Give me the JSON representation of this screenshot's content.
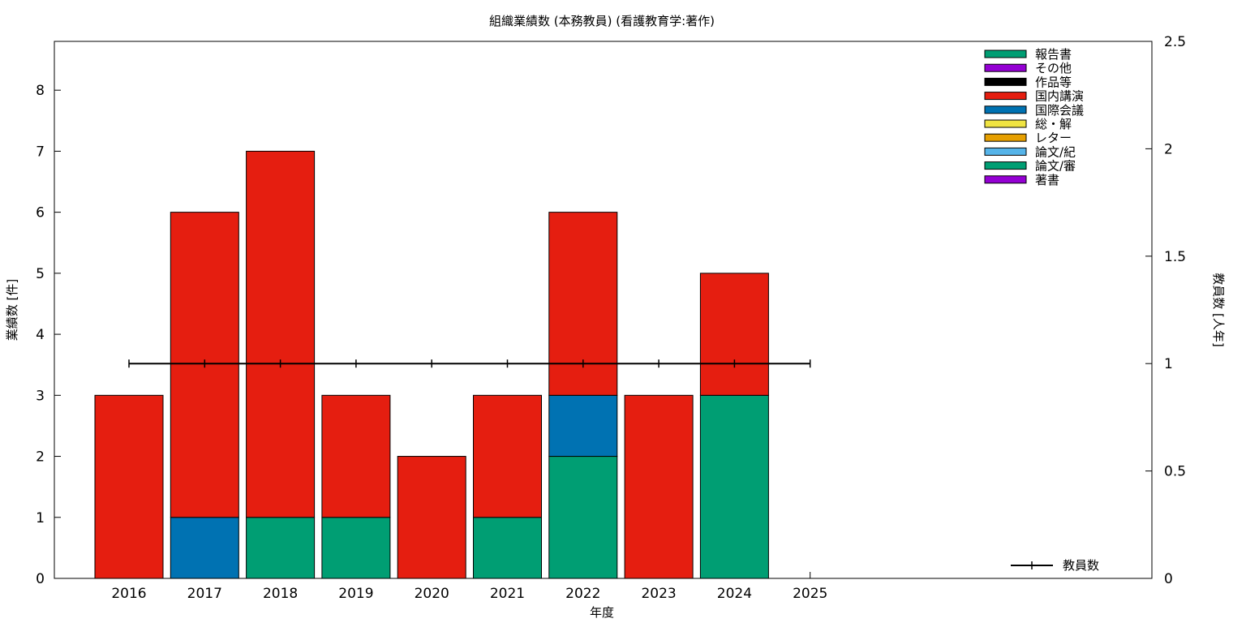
{
  "chart_data": {
    "type": "bar",
    "stacked": true,
    "title": "組織業績数 (本務教員) (看護教育学:著作)",
    "xlabel": "年度",
    "ylabel": "業績数 [件]",
    "y2label": "教員数 [人年]",
    "categories": [
      "2016",
      "2017",
      "2018",
      "2019",
      "2020",
      "2021",
      "2022",
      "2023",
      "2024",
      "2025"
    ],
    "ylim": [
      0,
      8.8
    ],
    "yticks": [
      0,
      1,
      2,
      3,
      4,
      5,
      6,
      7,
      8
    ],
    "y2lim": [
      0,
      2.5
    ],
    "y2ticks": [
      "0",
      "0.5",
      "1",
      "1.5",
      "2",
      "2.5"
    ],
    "y2tick_values": [
      0,
      0.5,
      1,
      1.5,
      2,
      2.5
    ],
    "grid": false,
    "legend_position": "top-right",
    "series": [
      {
        "name": "著書",
        "color": "#9400d3",
        "values": [
          0,
          0,
          0,
          0,
          0,
          0,
          0,
          0,
          0,
          0
        ]
      },
      {
        "name": "論文/審",
        "color": "#009e73",
        "values": [
          0,
          0,
          1,
          1,
          0,
          1,
          2,
          0,
          3,
          0
        ]
      },
      {
        "name": "論文/紀",
        "color": "#56b4e9",
        "values": [
          0,
          0,
          0,
          0,
          0,
          0,
          0,
          0,
          0,
          0
        ]
      },
      {
        "name": "レター",
        "color": "#e69f00",
        "values": [
          0,
          0,
          0,
          0,
          0,
          0,
          0,
          0,
          0,
          0
        ]
      },
      {
        "name": "総・解",
        "color": "#f0e442",
        "values": [
          0,
          0,
          0,
          0,
          0,
          0,
          0,
          0,
          0,
          0
        ]
      },
      {
        "name": "国際会議",
        "color": "#0072b2",
        "values": [
          0,
          1,
          0,
          0,
          0,
          0,
          1,
          0,
          0,
          0
        ]
      },
      {
        "name": "国内講演",
        "color": "#e51e10",
        "values": [
          3,
          5,
          6,
          2,
          2,
          2,
          3,
          3,
          2,
          0
        ]
      },
      {
        "name": "作品等",
        "color": "#000000",
        "values": [
          0,
          0,
          0,
          0,
          0,
          0,
          0,
          0,
          0,
          0
        ]
      },
      {
        "name": "その他",
        "color": "#9400d3",
        "values": [
          0,
          0,
          0,
          0,
          0,
          0,
          0,
          0,
          0,
          0
        ]
      },
      {
        "name": "報告書",
        "color": "#009e73",
        "values": [
          0,
          0,
          0,
          0,
          0,
          0,
          0,
          0,
          0,
          0
        ]
      }
    ],
    "legend_order": [
      "報告書",
      "その他",
      "作品等",
      "国内講演",
      "国際会議",
      "総・解",
      "レター",
      "論文/紀",
      "論文/審",
      "著書"
    ],
    "line_series": {
      "name": "教員数",
      "color": "#000000",
      "axis": "y2",
      "values": [
        1,
        1,
        1,
        1,
        1,
        1,
        1,
        1,
        1,
        1
      ]
    }
  }
}
